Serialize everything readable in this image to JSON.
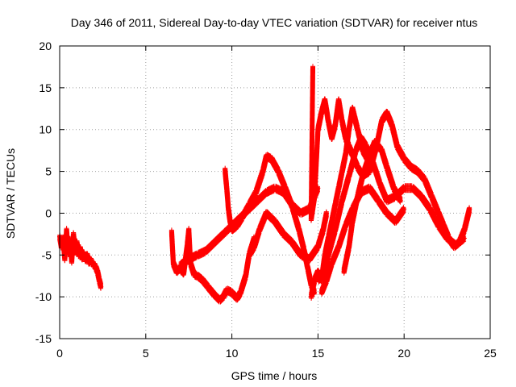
{
  "chart_data": {
    "type": "scatter",
    "title": "Day 346 of 2011, Sidereal Day-to-day VTEC variation (SDTVAR) for receiver ntus",
    "xlabel": "GPS time / hours",
    "ylabel": "SDTVAR / TECUs",
    "xlim": [
      0,
      25
    ],
    "ylim": [
      -15,
      20
    ],
    "xticks": [
      "0",
      "5",
      "10",
      "15",
      "20",
      "25"
    ],
    "yticks": [
      "-15",
      "-10",
      "-5",
      "0",
      "5",
      "10",
      "15",
      "20"
    ],
    "grid": true,
    "marker": "+",
    "color": "#ff0000",
    "series": [
      {
        "points": [
          [
            0.0,
            -2.8
          ],
          [
            0.1,
            -4.0
          ],
          [
            0.2,
            -3.0
          ],
          [
            0.3,
            -5.5
          ],
          [
            0.4,
            -2.0
          ],
          [
            0.5,
            -4.8
          ],
          [
            0.6,
            -3.2
          ],
          [
            0.7,
            -5.8
          ],
          [
            0.8,
            -2.5
          ],
          [
            0.9,
            -4.6
          ],
          [
            1.0,
            -3.5
          ],
          [
            1.1,
            -5.0
          ],
          [
            1.2,
            -4.2
          ],
          [
            1.3,
            -5.4
          ],
          [
            1.4,
            -4.8
          ],
          [
            1.5,
            -5.6
          ],
          [
            1.6,
            -5.0
          ],
          [
            1.7,
            -5.9
          ],
          [
            1.8,
            -5.6
          ],
          [
            1.9,
            -6.0
          ],
          [
            2.0,
            -6.2
          ],
          [
            2.1,
            -6.5
          ],
          [
            2.2,
            -7.0
          ],
          [
            2.3,
            -8.0
          ],
          [
            2.4,
            -8.8
          ]
        ]
      },
      {
        "points": [
          [
            6.5,
            -2.2
          ],
          [
            6.6,
            -6.0
          ],
          [
            6.8,
            -7.0
          ],
          [
            7.0,
            -6.5
          ],
          [
            7.2,
            -7.2
          ],
          [
            7.4,
            -4.0
          ],
          [
            7.5,
            -2.0
          ],
          [
            7.6,
            -6.0
          ],
          [
            7.8,
            -7.3
          ],
          [
            8.0,
            -7.5
          ],
          [
            8.3,
            -8.0
          ],
          [
            8.6,
            -8.8
          ],
          [
            9.0,
            -9.8
          ],
          [
            9.3,
            -10.4
          ],
          [
            9.5,
            -10.0
          ],
          [
            9.7,
            -9.2
          ],
          [
            10.0,
            -9.5
          ],
          [
            10.3,
            -10.2
          ],
          [
            10.5,
            -9.5
          ],
          [
            10.8,
            -7.5
          ],
          [
            11.0,
            -5.0
          ],
          [
            11.3,
            -3.0
          ]
        ]
      },
      {
        "points": [
          [
            7.0,
            -6.2
          ],
          [
            7.5,
            -5.5
          ],
          [
            8.0,
            -5.0
          ],
          [
            8.5,
            -4.5
          ],
          [
            9.0,
            -3.5
          ],
          [
            9.5,
            -2.5
          ],
          [
            10.0,
            -1.5
          ],
          [
            10.5,
            -0.5
          ],
          [
            11.0,
            0.5
          ],
          [
            11.5,
            1.5
          ],
          [
            12.0,
            2.5
          ],
          [
            12.5,
            3.0
          ],
          [
            13.0,
            2.5
          ],
          [
            13.5,
            1.0
          ],
          [
            14.0,
            0.0
          ],
          [
            14.5,
            0.5
          ],
          [
            15.0,
            3.0
          ]
        ]
      },
      {
        "points": [
          [
            9.6,
            5.2
          ],
          [
            9.7,
            3.0
          ],
          [
            9.8,
            0.5
          ],
          [
            9.9,
            -1.0
          ],
          [
            10.0,
            -2.0
          ],
          [
            10.3,
            -1.5
          ],
          [
            10.6,
            -0.5
          ],
          [
            11.0,
            1.0
          ],
          [
            11.4,
            2.5
          ],
          [
            11.8,
            5.0
          ],
          [
            12.0,
            6.8
          ],
          [
            12.3,
            6.5
          ],
          [
            12.7,
            5.0
          ],
          [
            13.1,
            3.0
          ],
          [
            13.5,
            0.8
          ],
          [
            13.9,
            -2.0
          ],
          [
            14.2,
            -4.5
          ],
          [
            14.4,
            -6.5
          ],
          [
            14.6,
            -8.5
          ],
          [
            14.8,
            -9.5
          ]
        ]
      },
      {
        "points": [
          [
            11.0,
            -5.0
          ],
          [
            11.3,
            -4.0
          ],
          [
            11.6,
            -2.0
          ],
          [
            12.0,
            0.0
          ],
          [
            12.5,
            -1.0
          ],
          [
            13.0,
            -2.5
          ],
          [
            13.5,
            -3.5
          ],
          [
            14.0,
            -5.0
          ],
          [
            14.5,
            -5.5
          ],
          [
            15.0,
            -4.0
          ],
          [
            15.3,
            -2.0
          ],
          [
            15.5,
            0.0
          ]
        ]
      },
      {
        "points": [
          [
            14.7,
            17.4
          ],
          [
            14.6,
            -0.7
          ],
          [
            14.8,
            2.0
          ],
          [
            15.0,
            10.0
          ],
          [
            15.2,
            12.0
          ],
          [
            15.4,
            13.5
          ],
          [
            15.6,
            11.0
          ],
          [
            15.8,
            9.0
          ],
          [
            16.0,
            10.5
          ],
          [
            16.2,
            13.5
          ],
          [
            16.4,
            11.0
          ],
          [
            16.6,
            9.0
          ],
          [
            16.8,
            8.0
          ],
          [
            17.0,
            7.0
          ],
          [
            17.3,
            5.5
          ],
          [
            17.6,
            4.5
          ],
          [
            18.0,
            5.0
          ],
          [
            18.4,
            8.0
          ],
          [
            18.7,
            11.0
          ],
          [
            19.0,
            12.0
          ],
          [
            19.3,
            10.5
          ],
          [
            19.6,
            8.0
          ],
          [
            20.0,
            6.5
          ],
          [
            20.4,
            5.5
          ],
          [
            20.8,
            5.0
          ],
          [
            21.2,
            4.0
          ],
          [
            21.6,
            2.0
          ],
          [
            22.0,
            0.0
          ],
          [
            22.3,
            -1.5
          ],
          [
            22.6,
            -3.0
          ],
          [
            22.9,
            -4.0
          ],
          [
            23.2,
            -3.5
          ],
          [
            23.5,
            -2.0
          ],
          [
            23.8,
            0.5
          ]
        ]
      },
      {
        "points": [
          [
            15.0,
            -8.0
          ],
          [
            15.3,
            -7.5
          ],
          [
            15.6,
            -5.0
          ],
          [
            16.0,
            -2.0
          ],
          [
            16.4,
            1.5
          ],
          [
            16.8,
            4.5
          ],
          [
            17.2,
            7.5
          ],
          [
            17.5,
            9.0
          ],
          [
            17.8,
            8.0
          ],
          [
            18.2,
            6.0
          ],
          [
            18.6,
            3.5
          ],
          [
            19.0,
            1.5
          ],
          [
            19.5,
            2.0
          ],
          [
            20.0,
            3.0
          ],
          [
            20.5,
            3.0
          ],
          [
            21.0,
            2.0
          ],
          [
            21.5,
            0.5
          ],
          [
            22.0,
            -1.5
          ],
          [
            22.5,
            -3.0
          ],
          [
            23.0,
            -3.8
          ],
          [
            23.5,
            -3.0
          ]
        ]
      },
      {
        "points": [
          [
            15.2,
            -9.5
          ],
          [
            15.5,
            -8.0
          ],
          [
            15.8,
            -6.0
          ],
          [
            16.2,
            -4.0
          ],
          [
            16.6,
            -1.5
          ],
          [
            17.0,
            0.5
          ],
          [
            17.5,
            2.5
          ],
          [
            18.0,
            3.0
          ],
          [
            18.5,
            1.5
          ],
          [
            19.0,
            0.0
          ],
          [
            19.5,
            -1.0
          ],
          [
            20.0,
            0.5
          ]
        ]
      },
      {
        "points": [
          [
            16.5,
            -7.0
          ],
          [
            16.8,
            -4.0
          ],
          [
            17.0,
            -1.0
          ],
          [
            17.3,
            2.0
          ],
          [
            17.6,
            4.5
          ],
          [
            18.0,
            7.0
          ],
          [
            18.3,
            8.5
          ],
          [
            18.7,
            7.5
          ],
          [
            19.0,
            5.5
          ],
          [
            19.4,
            3.0
          ],
          [
            19.8,
            1.5
          ]
        ]
      },
      {
        "points": [
          [
            14.6,
            -10.0
          ],
          [
            14.8,
            -8.0
          ],
          [
            15.0,
            -7.0
          ],
          [
            15.2,
            -8.0
          ],
          [
            15.4,
            -5.0
          ],
          [
            15.6,
            -3.0
          ],
          [
            15.8,
            -1.0
          ],
          [
            16.0,
            1.0
          ],
          [
            16.2,
            3.0
          ],
          [
            16.4,
            5.0
          ],
          [
            16.6,
            7.0
          ],
          [
            16.8,
            10.0
          ],
          [
            17.0,
            12.5
          ],
          [
            17.3,
            10.0
          ],
          [
            17.6,
            7.5
          ],
          [
            18.0,
            6.0
          ]
        ]
      }
    ]
  }
}
